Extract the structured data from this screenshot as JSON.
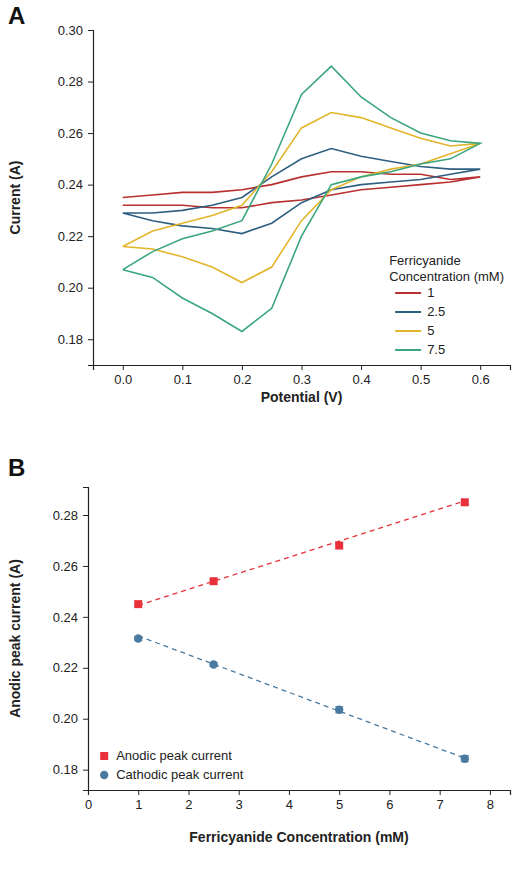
{
  "chart_data": [
    {
      "type": "line",
      "panel": "A",
      "xlabel": "Potential (V)",
      "ylabel": "Current (A)",
      "legend_title": "Ferricyanide Concentration (mM)",
      "legend": "bottom-right",
      "xlim": [
        -0.05,
        0.65
      ],
      "xticks": [
        {
          "value": 0,
          "label": "0.0"
        },
        0.1,
        0.2,
        0.3,
        0.4,
        0.5,
        0.6
      ],
      "ylim": [
        0.17,
        0.3
      ],
      "yticks": [
        0.18,
        {
          "value": 0.2,
          "label": "0.20"
        },
        0.22,
        0.24,
        0.26,
        0.28,
        {
          "value": 0.3,
          "label": "0.30"
        }
      ],
      "x": [
        0,
        0.05,
        0.1,
        0.15,
        0.2,
        0.25,
        0.3,
        0.35,
        0.4,
        0.45,
        0.5,
        0.55,
        0.6,
        0.55,
        0.5,
        0.45,
        0.4,
        0.35,
        0.3,
        0.25,
        0.2,
        0.15,
        0.1,
        0.05,
        0
      ],
      "series": [
        {
          "name": "1",
          "color": "#b8302f",
          "values": [
            0.235,
            0.236,
            0.237,
            0.237,
            0.238,
            0.24,
            0.243,
            0.245,
            0.245,
            0.244,
            0.244,
            0.242,
            0.243,
            0.241,
            0.24,
            0.239,
            0.238,
            0.236,
            0.234,
            0.233,
            0.231,
            0.231,
            0.232,
            0.232,
            0.232
          ]
        },
        {
          "name": "2.5",
          "color": "#2e5f80",
          "values": [
            0.229,
            0.229,
            0.23,
            0.232,
            0.235,
            0.243,
            0.25,
            0.254,
            0.251,
            0.249,
            0.247,
            0.246,
            0.246,
            0.244,
            0.242,
            0.241,
            0.24,
            0.238,
            0.233,
            0.225,
            0.221,
            0.223,
            0.224,
            0.226,
            0.229
          ]
        },
        {
          "name": "5",
          "color": "#e2b52c",
          "values": [
            0.216,
            0.222,
            0.225,
            0.228,
            0.232,
            0.245,
            0.262,
            0.268,
            0.266,
            0.262,
            0.258,
            0.255,
            0.256,
            0.252,
            0.248,
            0.246,
            0.243,
            0.238,
            0.226,
            0.208,
            0.202,
            0.208,
            0.212,
            0.215,
            0.216
          ]
        },
        {
          "name": "7.5",
          "color": "#3aa67e",
          "values": [
            0.207,
            0.214,
            0.219,
            0.222,
            0.226,
            0.248,
            0.275,
            0.286,
            0.274,
            0.266,
            0.26,
            0.257,
            0.256,
            0.25,
            0.248,
            0.245,
            0.243,
            0.24,
            0.22,
            0.192,
            0.183,
            0.19,
            0.196,
            0.204,
            0.207
          ]
        }
      ]
    },
    {
      "type": "scatter",
      "panel": "B",
      "xlabel": "Ferricyanide Concentration (mM)",
      "ylabel": "Anodic peak current (A)",
      "legend": "bottom-left",
      "xlim": [
        0,
        8.4
      ],
      "xticks": [
        0,
        1,
        2,
        3,
        4,
        5,
        6,
        7,
        8
      ],
      "ylim": [
        0.172,
        0.291
      ],
      "yticks": [
        0.18,
        {
          "value": 0.2,
          "label": "0.20"
        },
        0.22,
        0.24,
        0.26,
        0.28
      ],
      "series": [
        {
          "type": "line",
          "line_style": "dashed",
          "color": "#e8313a",
          "x": [
            1,
            7.5
          ],
          "values": [
            0.2445,
            0.2855
          ]
        },
        {
          "type": "line",
          "line_style": "dashed",
          "color": "#4a7aa0",
          "x": [
            1,
            7.5
          ],
          "values": [
            0.2325,
            0.1845
          ]
        },
        {
          "name": "Anodic peak current",
          "marker": "square",
          "color": "#e8313a",
          "x": [
            1,
            2.5,
            5,
            7.5
          ],
          "values": [
            0.245,
            0.254,
            0.268,
            0.285
          ]
        },
        {
          "name": "Cathodic peak current",
          "marker": "circle",
          "color": "#4a7aa0",
          "x": [
            1,
            2.5,
            5,
            7.5
          ],
          "values": [
            0.2315,
            0.2213,
            0.2035,
            0.1843
          ],
          "errors": [
            0.0008,
            0.0008,
            0.0012,
            0.0012
          ]
        }
      ]
    }
  ]
}
